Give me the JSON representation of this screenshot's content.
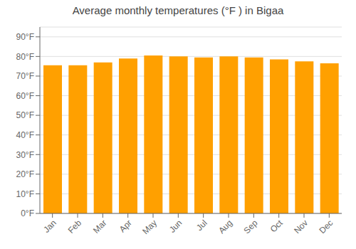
{
  "chart_data": {
    "type": "bar",
    "title": "Average monthly temperatures (°F ) in Bigaa",
    "categories": [
      "Jan",
      "Feb",
      "Mar",
      "Apr",
      "May",
      "Jun",
      "Jul",
      "Aug",
      "Sep",
      "Oct",
      "Nov",
      "Dec"
    ],
    "values": [
      75.5,
      75.5,
      77.0,
      79.0,
      80.5,
      80.0,
      79.5,
      80.0,
      79.5,
      78.5,
      77.5,
      76.5
    ],
    "color": "#FFA000",
    "ylim": [
      0,
      95
    ],
    "yticks": [
      {
        "value": 0,
        "label": "0°F"
      },
      {
        "value": 10,
        "label": "10°F"
      },
      {
        "value": 20,
        "label": "20°F"
      },
      {
        "value": 30,
        "label": "30°F"
      },
      {
        "value": 40,
        "label": "40°F"
      },
      {
        "value": 50,
        "label": "50°F"
      },
      {
        "value": 60,
        "label": "60°F"
      },
      {
        "value": 70,
        "label": "70°F"
      },
      {
        "value": 80,
        "label": "80°F"
      },
      {
        "value": 90,
        "label": "90°F"
      }
    ],
    "grid": true
  }
}
